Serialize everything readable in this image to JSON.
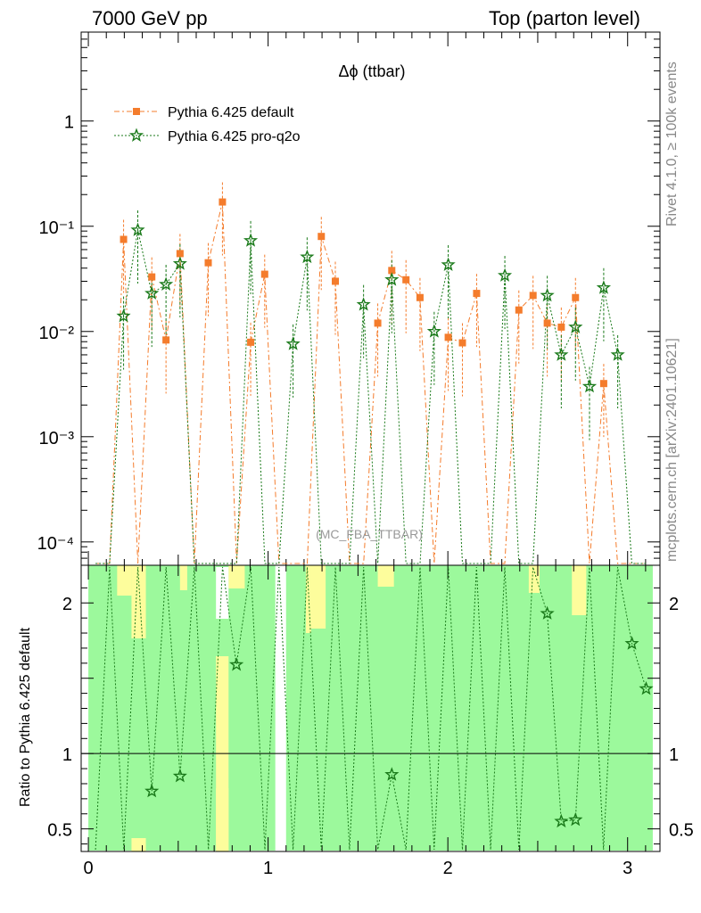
{
  "header": {
    "left": "7000 GeV pp",
    "right": "Top (parton level)"
  },
  "side": {
    "rivet": "Rivet 4.1.0, ≥ 100k events",
    "mcplots": "mcplots.cern.ch [arXiv:2401.10621]"
  },
  "colors": {
    "default": "#f47c2c",
    "proq2o": "#1a7a1a",
    "band_green": "#9cf99c",
    "band_yellow": "#fdfd9c"
  },
  "chart_data": [
    {
      "type": "line",
      "title": "Δϕ (ttbar)",
      "watermark": "(MC_FBA_TTBAR)",
      "xlabel": "",
      "ylabel": "",
      "yscale": "log",
      "ylim": [
        6e-05,
        7
      ],
      "xlim": [
        -0.04,
        3.18
      ],
      "ytick_labels": [
        "10⁻⁴",
        "10⁻³",
        "10⁻²",
        "10⁻¹",
        "1"
      ],
      "ytick_values": [
        0.0001,
        0.001,
        0.01,
        0.1,
        1
      ],
      "legend": {
        "placement": "top-left",
        "entries": [
          "Pythia 6.425 default",
          "Pythia 6.425 pro-q2o"
        ]
      },
      "series": [
        {
          "name": "Pythia 6.425 default",
          "marker": "square",
          "x": [
            0.196,
            0.353,
            0.432,
            0.51,
            0.667,
            0.746,
            0.903,
            0.981,
            1.296,
            1.374,
            1.61,
            1.688,
            1.767,
            1.845,
            2.002,
            2.081,
            2.16,
            2.395,
            2.474,
            2.553,
            2.631,
            2.71,
            2.867
          ],
          "values": [
            0.075,
            0.033,
            0.0083,
            0.055,
            0.045,
            0.17,
            0.0079,
            0.035,
            0.08,
            0.03,
            0.012,
            0.038,
            0.031,
            0.021,
            0.0088,
            0.0078,
            0.023,
            0.016,
            0.022,
            0.012,
            0.011,
            0.021,
            0.0032
          ]
        },
        {
          "name": "Pythia 6.425 pro-q2o",
          "marker": "star",
          "x": [
            0.196,
            0.275,
            0.353,
            0.432,
            0.51,
            0.903,
            1.139,
            1.217,
            1.531,
            1.688,
            1.924,
            2.002,
            2.317,
            2.553,
            2.631,
            2.71,
            2.788,
            2.867,
            2.945
          ],
          "values": [
            0.014,
            0.092,
            0.023,
            0.028,
            0.044,
            0.073,
            0.0076,
            0.051,
            0.018,
            0.031,
            0.01,
            0.043,
            0.034,
            0.022,
            0.006,
            0.011,
            0.003,
            0.026,
            0.006
          ]
        }
      ]
    },
    {
      "type": "line",
      "title": "",
      "xlabel": "",
      "ylabel": "Ratio to Pythia 6.425 default",
      "ylim": [
        0.35,
        2.25
      ],
      "xlim": [
        -0.04,
        3.18
      ],
      "ytick_labels": [
        "0.5",
        "1",
        "2"
      ],
      "ytick_values": [
        0.5,
        1,
        2
      ],
      "xtick_labels": [
        "0",
        "1",
        "2",
        "3"
      ],
      "xtick_values": [
        0,
        1,
        2,
        3
      ],
      "series": [
        {
          "name": "Pythia 6.425 pro-q2o / default",
          "marker": "star",
          "x": [
            0.353,
            0.51,
            0.824,
            1.688,
            2.553,
            2.631,
            2.71,
            3.024,
            3.103
          ],
          "values": [
            0.75,
            0.85,
            1.59,
            0.86,
            1.93,
            0.55,
            0.56,
            1.73,
            1.43
          ]
        }
      ]
    }
  ]
}
